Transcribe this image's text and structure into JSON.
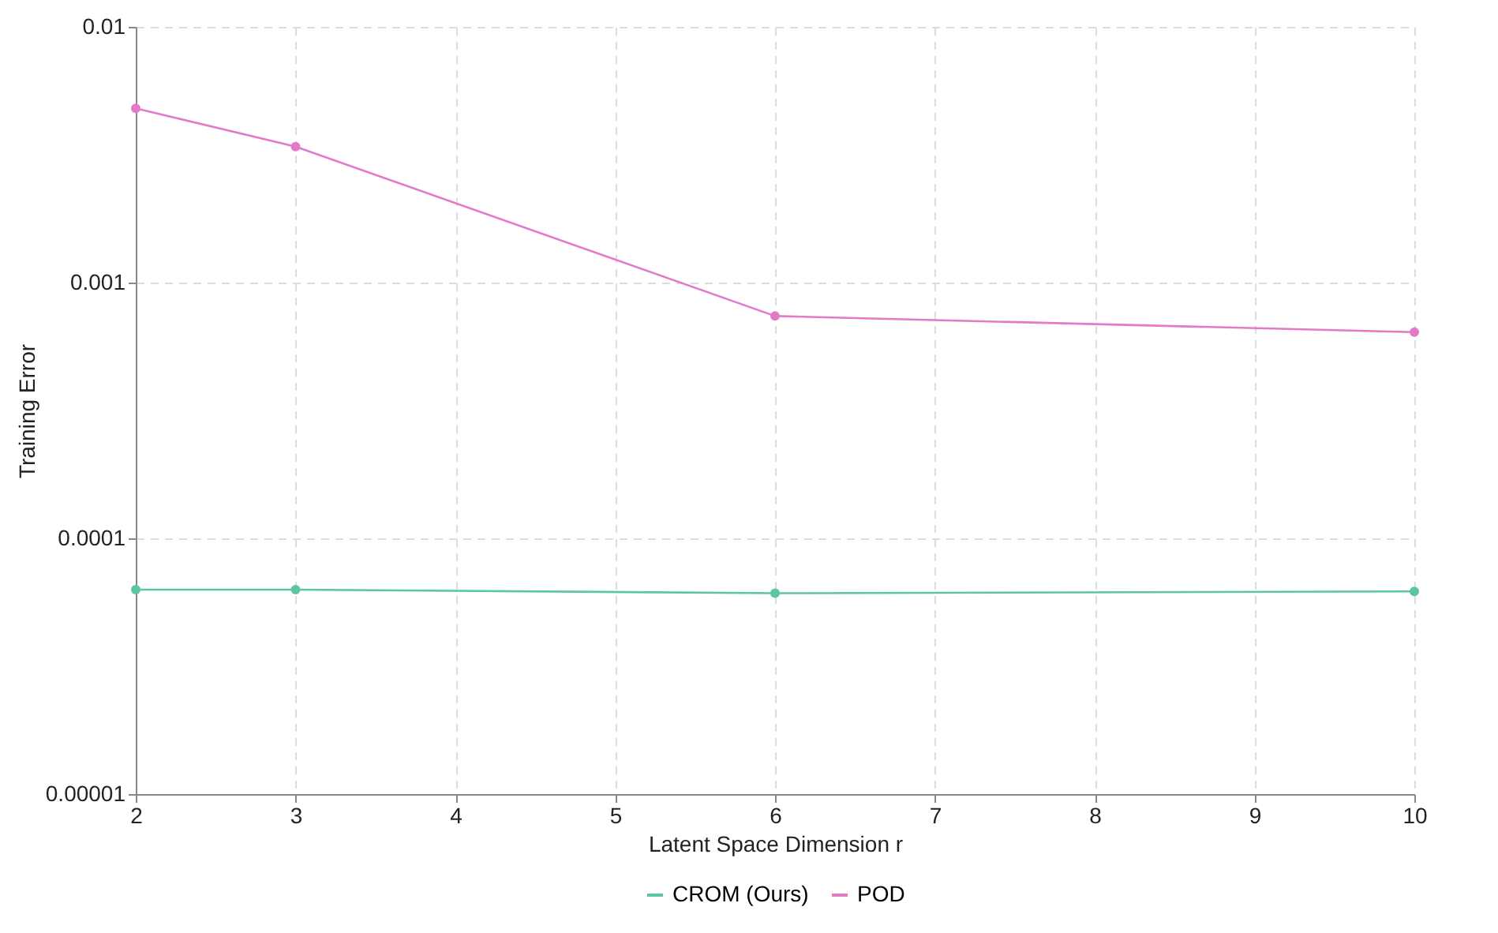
{
  "chart_data": {
    "type": "line",
    "xlabel": "Latent Space Dimension r",
    "ylabel": "Training Error",
    "x": [
      2,
      3,
      6,
      10
    ],
    "series": [
      {
        "name": "CROM (Ours)",
        "color": "#5cc6a3",
        "values": [
          6.3e-05,
          6.3e-05,
          6.1e-05,
          6.2e-05
        ]
      },
      {
        "name": "POD",
        "color": "#e37ac8",
        "values": [
          0.0048,
          0.0034,
          0.00074,
          0.00064
        ]
      }
    ],
    "xlim": [
      2,
      10
    ],
    "xticks": [
      2,
      3,
      4,
      5,
      6,
      7,
      8,
      9,
      10
    ],
    "ylim": [
      1e-05,
      0.01
    ],
    "yticks": [
      {
        "value": 1e-05,
        "label": "0.00001"
      },
      0.0001,
      0.001,
      0.01
    ],
    "log": "y",
    "grid": true,
    "legend": "bottom",
    "marker": "circle",
    "line_style": "solid"
  }
}
